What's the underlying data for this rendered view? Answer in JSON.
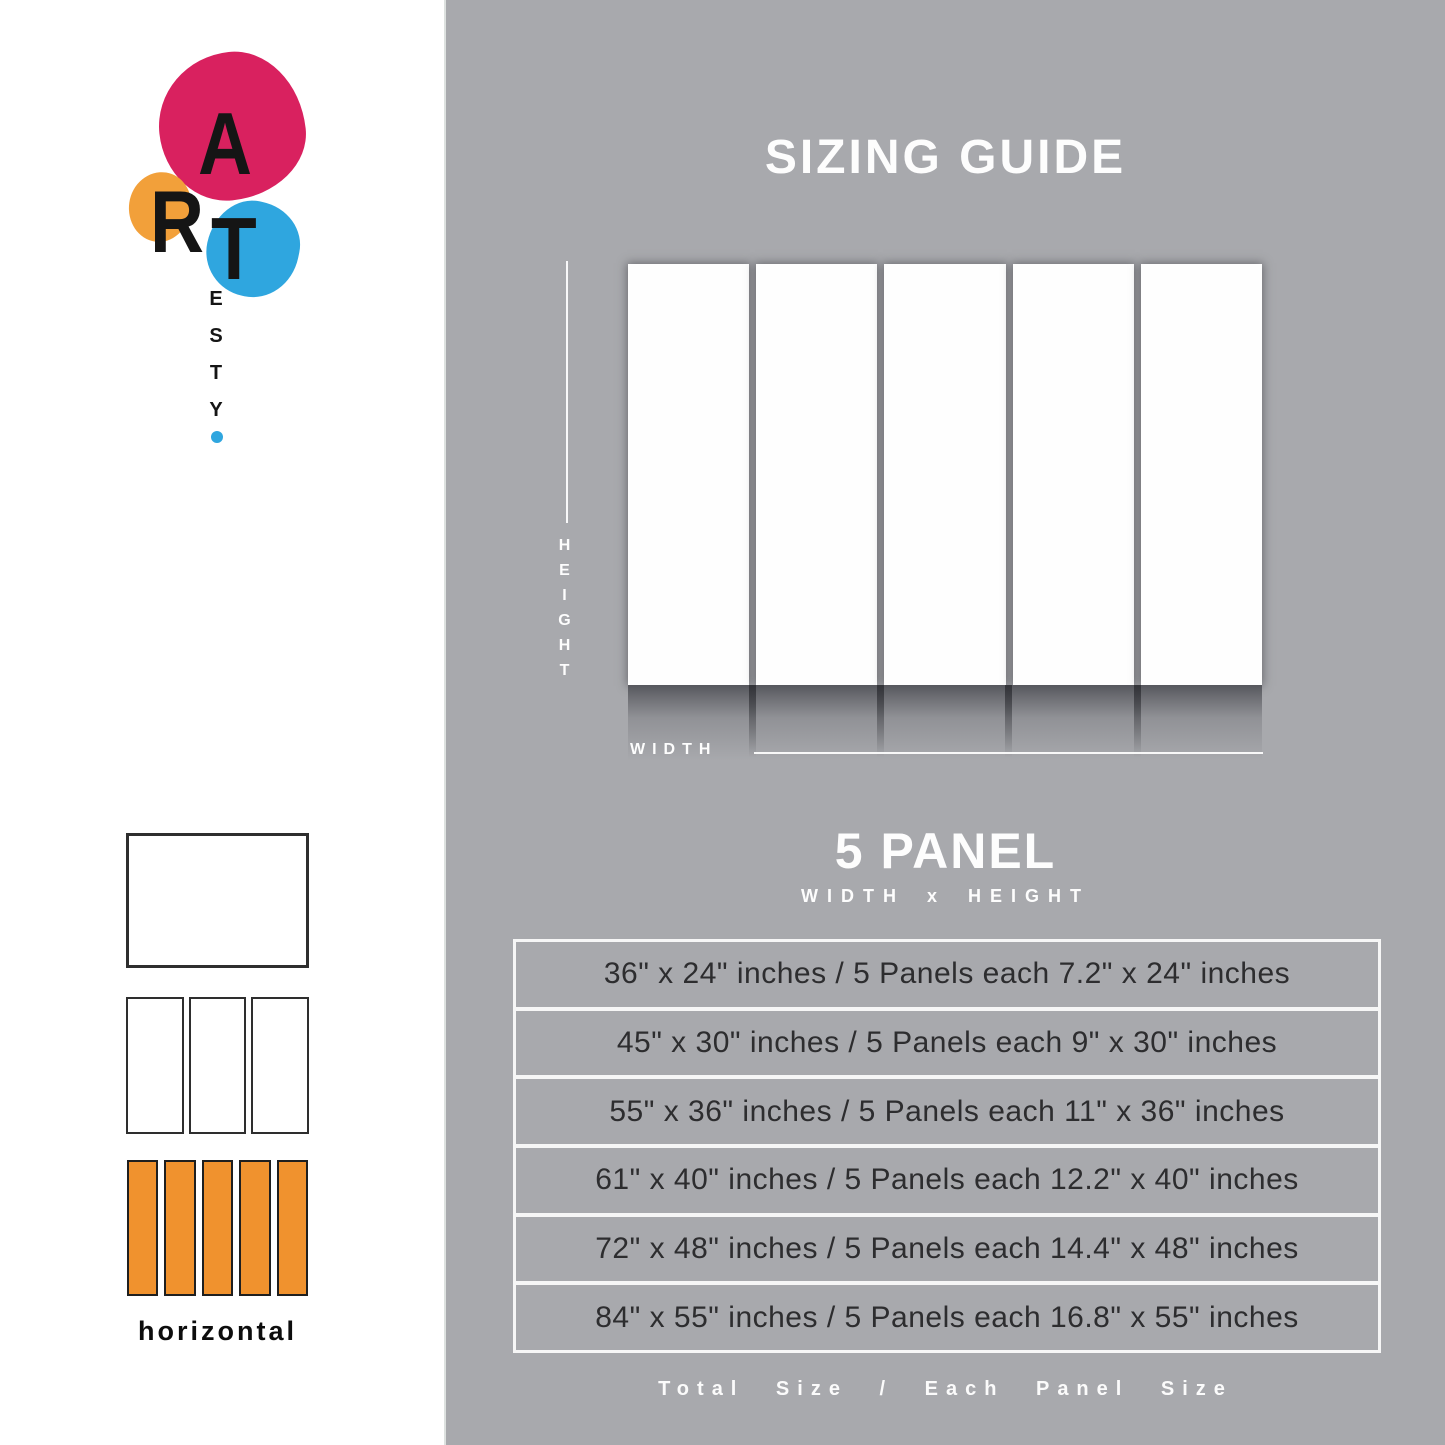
{
  "brand": {
    "name": "ARTesty",
    "letters": {
      "a": "A",
      "r": "R",
      "t": "T"
    },
    "vertical_letters": [
      "E",
      "S",
      "T",
      "Y"
    ],
    "colors": {
      "pink": "#D9215F",
      "orange": "#F2A03A",
      "blue": "#2FA6DF"
    }
  },
  "sidebar": {
    "thumbnail_panel_counts": [
      1,
      3,
      5
    ],
    "highlighted_panel_count": 5,
    "highlight_color": "#F0922E",
    "orientation_label": "horizontal"
  },
  "guide": {
    "background_color": "#A8A9AD",
    "title": "SIZING GUIDE",
    "diagram": {
      "panel_count": 5,
      "height_label": "HEIGHT",
      "width_label": "WIDTH"
    },
    "panel_heading": "5 PANEL",
    "panel_subheading": "WIDTH x HEIGHT",
    "size_rows": [
      {
        "text": "36\" x 24\" inches / 5 Panels each 7.2\" x 24\" inches"
      },
      {
        "text": "45\" x 30\" inches / 5 Panels each 9\" x 30\" inches"
      },
      {
        "text": "55\" x 36\" inches / 5 Panels each 11\" x 36\" inches"
      },
      {
        "text": "61\" x 40\" inches / 5 Panels each 12.2\" x 40\" inches"
      },
      {
        "text": "72\" x 48\" inches / 5 Panels each 14.4\" x 48\" inches"
      },
      {
        "text": "84\" x 55\" inches / 5 Panels each 16.8\" x 55\" inches"
      }
    ],
    "footer": "Total Size / Each Panel Size"
  }
}
